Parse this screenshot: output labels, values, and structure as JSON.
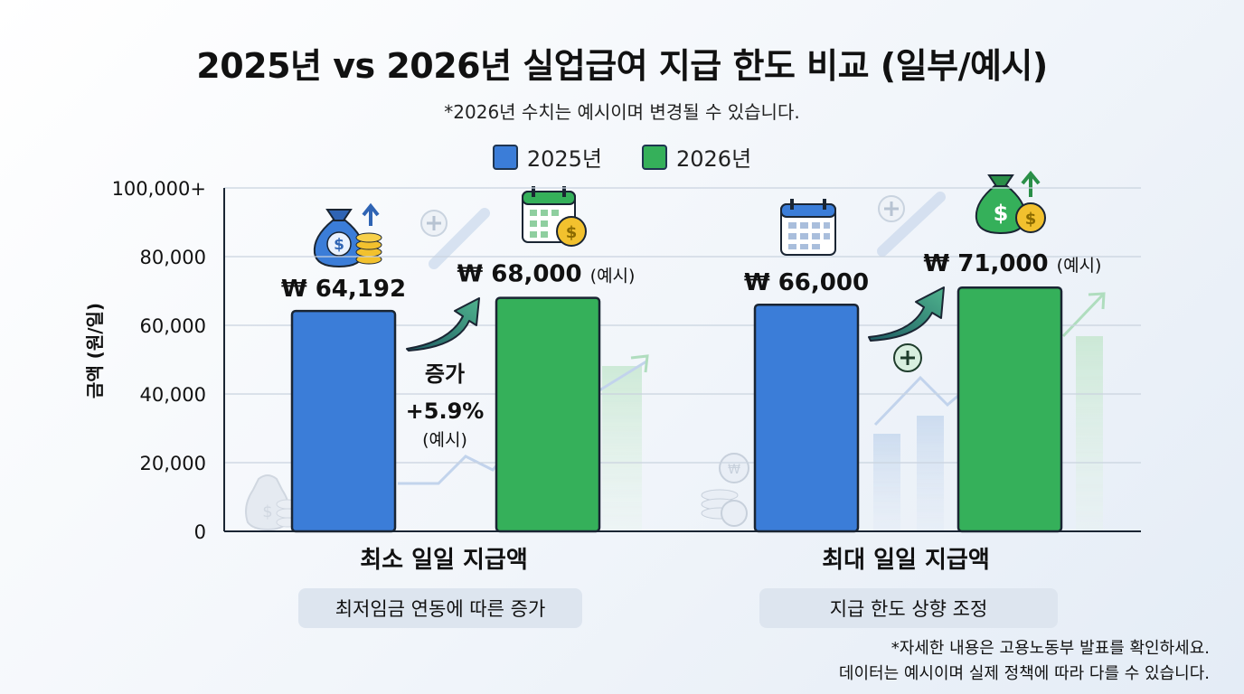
{
  "title": "2025년 vs 2026년 실업급여 지급 한도 비교 (일부/예시)",
  "subtitle": "*2026년 수치는 예시이며 변경될 수 있습니다.",
  "legend": [
    {
      "label": "2025년",
      "color": "#3b7dd8"
    },
    {
      "label": "2026년",
      "color": "#35b05a"
    }
  ],
  "colors": {
    "bar2025": "#3b7dd8",
    "bar2026": "#35b05a",
    "outline": "#1a2533",
    "grid": "#c9d3df"
  },
  "chart_data": {
    "type": "bar",
    "categories": [
      "최소 일일 지급액",
      "최대 일일 지급액"
    ],
    "category_notes": [
      "최저임금 연동에 따른 증가",
      "지급 한도 상향 조정"
    ],
    "series": [
      {
        "name": "2025년",
        "values": [
          64192,
          66000
        ]
      },
      {
        "name": "2026년",
        "values": [
          68000,
          71000
        ]
      }
    ],
    "value_labels": [
      [
        "₩ 64,192",
        "₩ 66,000"
      ],
      [
        "₩ 68,000",
        "₩ 71,000"
      ]
    ],
    "value_label_suffix": "(예시)",
    "ylabel": "금액 (원/일)",
    "yticks": [
      "0",
      "20,000",
      "40,000",
      "60,000",
      "80,000",
      "100,000+"
    ],
    "ylim": [
      0,
      100000
    ],
    "grid": true,
    "legend_position": "top-center",
    "annotation": {
      "line1": "증가",
      "line2": "+5.9%",
      "line3": "(예시)"
    }
  },
  "footnote": [
    "*자세한 내용은 고용노동부 발표를 확인하세요.",
    "데이터는 예시이며 실제 정책에 따라 다를 수 있습니다."
  ]
}
